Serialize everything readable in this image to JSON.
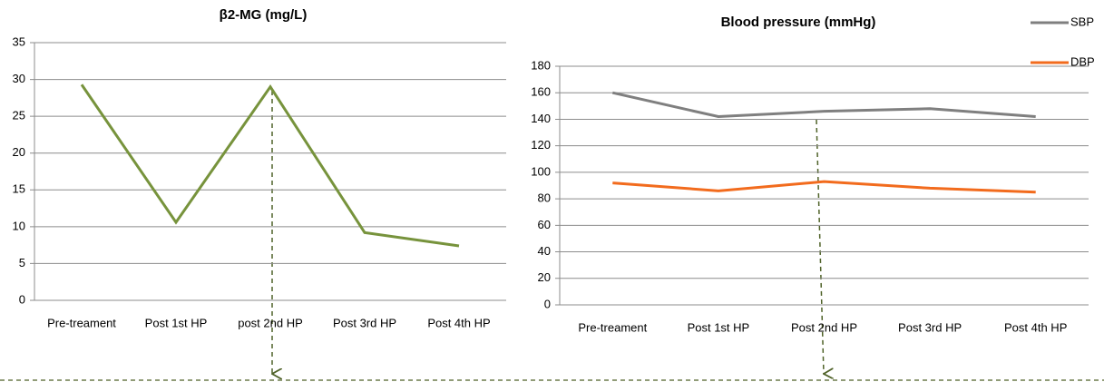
{
  "chart_data": [
    {
      "type": "line",
      "title": "β2-MG (mg/L)",
      "categories": [
        "Pre-treament",
        "Post 1st HP",
        "post 2nd HP",
        "Post 3rd HP",
        "Post 4th HP"
      ],
      "series": [
        {
          "name": "β2-MG",
          "color": "#77933c",
          "values": [
            29.3,
            10.6,
            29,
            9.2,
            7.4
          ]
        }
      ],
      "ylim": [
        0,
        35
      ],
      "yticks": [
        0,
        5,
        10,
        15,
        20,
        25,
        30,
        35
      ],
      "grid": true,
      "legend": false
    },
    {
      "type": "line",
      "title": "Blood pressure (mmHg)",
      "categories": [
        "Pre-treament",
        "Post 1st HP",
        "Post 2nd HP",
        "Post 3rd HP",
        "Post 4th HP"
      ],
      "series": [
        {
          "name": "SBP",
          "color": "#7f7f7f",
          "values": [
            160,
            142,
            146,
            148,
            142
          ]
        },
        {
          "name": "DBP",
          "color": "#f26b1d",
          "values": [
            92,
            86,
            93,
            88,
            85
          ]
        }
      ],
      "ylim": [
        0,
        180
      ],
      "yticks": [
        0,
        20,
        40,
        60,
        80,
        100,
        120,
        140,
        160,
        180
      ],
      "grid": true,
      "legend": "top-right"
    }
  ]
}
